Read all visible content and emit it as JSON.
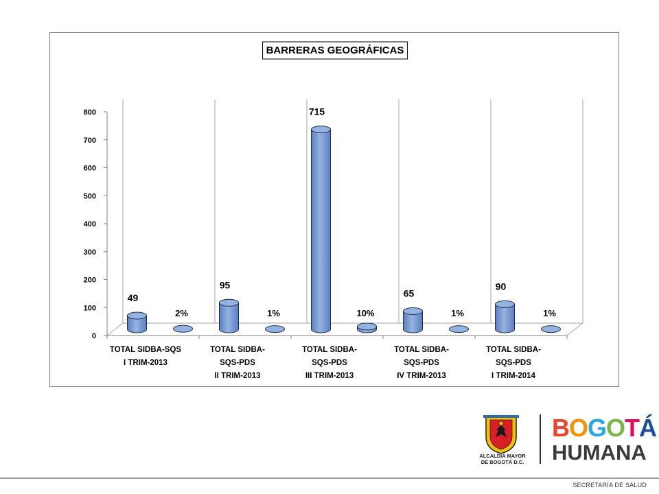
{
  "chart_data": {
    "type": "bar",
    "title": "BARRERAS GEOGRÁFICAS",
    "categories": [
      [
        "TOTAL SIDBA-SQS",
        "I TRIM-2013"
      ],
      [
        "TOTAL SIDBA-",
        "SQS-PDS",
        "II TRIM-2013"
      ],
      [
        "TOTAL SIDBA-",
        "SQS-PDS",
        "III TRIM-2013"
      ],
      [
        "TOTAL SIDBA-",
        "SQS-PDS",
        "IV TRIM-2013"
      ],
      [
        "TOTAL SIDBA-",
        "SQS-PDS",
        "I TRIM-2014"
      ]
    ],
    "series": [
      {
        "values": [
          49,
          95,
          715,
          65,
          90
        ],
        "labels": [
          "49",
          "95",
          "715",
          "65",
          "90"
        ]
      },
      {
        "values": [
          2,
          1,
          10,
          1,
          1
        ],
        "labels": [
          "2%",
          "1%",
          "10%",
          "1%",
          "1%"
        ]
      }
    ],
    "ylim": [
      0,
      800
    ],
    "yticks": [
      "0",
      "100",
      "200",
      "300",
      "400",
      "500",
      "600",
      "700",
      "800"
    ],
    "grid": "vertical",
    "legend": "none"
  },
  "colors": {
    "bar_fill": "#95b3e0",
    "bar_dark": "#5a7fc0",
    "bar_edge": "#1f2d4a",
    "grid": "#a6a6a6"
  },
  "branding": {
    "alcaldia_line1": "ALCALDÍA MAYOR",
    "alcaldia_line2": "DE BOGOTÁ D.C.",
    "bogota": [
      "B",
      "O",
      "G",
      "O",
      "T",
      "Á"
    ],
    "bogota_colors": [
      "#e8452b",
      "#f39200",
      "#2aa7df",
      "#7ab648",
      "#e30b5c",
      "#1d4e9c"
    ],
    "humana": "HUMANA",
    "footer": "SECRETARÍA DE SALUD"
  }
}
